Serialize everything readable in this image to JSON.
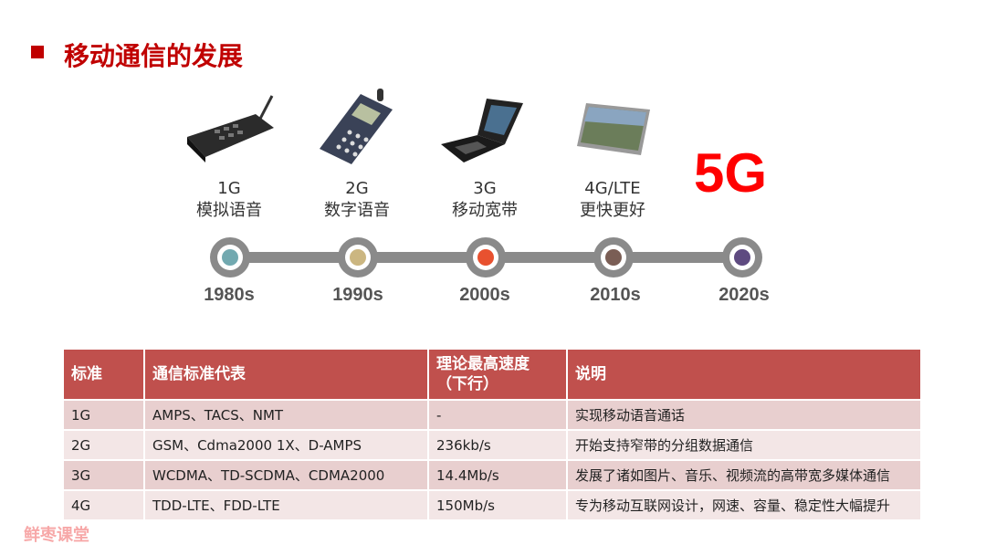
{
  "title": "移动通信的发展",
  "generations": [
    {
      "gen": "1G",
      "desc": "模拟语音",
      "year": "1980s",
      "color": "#72a9b0"
    },
    {
      "gen": "2G",
      "desc": "数字语音",
      "year": "1990s",
      "color": "#cbb681"
    },
    {
      "gen": "3G",
      "desc": "移动宽带",
      "year": "2000s",
      "color": "#e8512f"
    },
    {
      "gen": "4G/LTE",
      "desc": "更快更好",
      "year": "2010s",
      "color": "#7a5e55"
    },
    {
      "gen": "5G",
      "desc": "",
      "year": "2020s",
      "color": "#5e4a80"
    }
  ],
  "table": {
    "headers": [
      "标准",
      "通信标准代表",
      "理论最高速度（下行）",
      "说明"
    ],
    "rows": [
      [
        "1G",
        "AMPS、TACS、NMT",
        "-",
        "实现移动语音通话"
      ],
      [
        "2G",
        "GSM、Cdma2000 1X、D-AMPS",
        "236kb/s",
        "开始支持窄带的分组数据通信"
      ],
      [
        "3G",
        "WCDMA、TD-SCDMA、CDMA2000",
        "14.4Mb/s",
        "发展了诸如图片、音乐、视频流的高带宽多媒体通信"
      ],
      [
        "4G",
        "TDD-LTE、FDD-LTE",
        "150Mb/s",
        "专为移动互联网设计，网速、容量、稳定性大幅提升"
      ]
    ]
  },
  "watermark": "鲜枣课堂"
}
